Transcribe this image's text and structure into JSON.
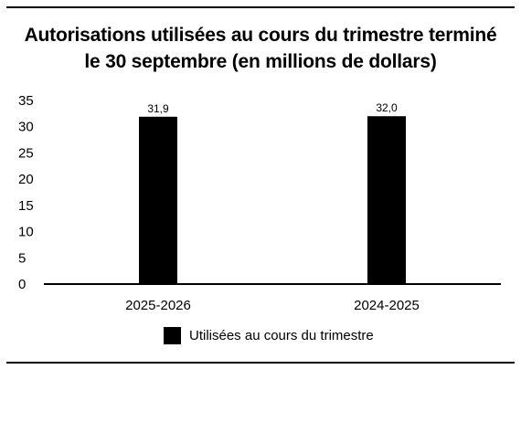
{
  "chart_data": {
    "type": "bar",
    "title_lines": [
      "Autorisations utilisées au cours du trimestre terminé",
      "le 30 septembre (en millions de dollars)"
    ],
    "categories": [
      "2025-2026",
      "2024-2025"
    ],
    "series": [
      {
        "name": "Utilisées au cours du trimestre",
        "values": [
          31.9,
          32.0
        ],
        "data_labels": [
          "31,9",
          "32,0"
        ],
        "color": "#000000"
      }
    ],
    "yticks": [
      0,
      5,
      10,
      15,
      20,
      25,
      30,
      35
    ],
    "ylim": [
      0,
      35
    ],
    "grid": false,
    "legend_position": "bottom"
  }
}
